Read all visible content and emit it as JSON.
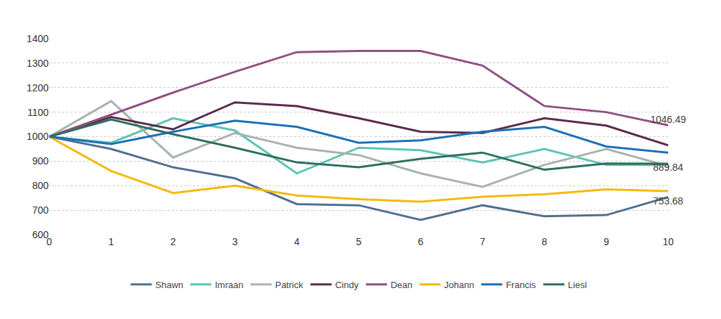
{
  "chart_data": {
    "type": "line",
    "x": [
      0,
      1,
      2,
      3,
      4,
      5,
      6,
      7,
      8,
      9,
      10
    ],
    "xlim": [
      0,
      10
    ],
    "xticks": [
      0,
      1,
      2,
      3,
      4,
      5,
      6,
      7,
      8,
      9,
      10
    ],
    "ylim": [
      600,
      1400
    ],
    "yticks": [
      600,
      700,
      800,
      900,
      1000,
      1100,
      1200,
      1300,
      1400
    ],
    "grid": true,
    "legend": "bottom",
    "series": [
      {
        "name": "Shawn",
        "color": "#4f6f91",
        "values": [
          1000,
          950,
          875,
          830,
          725,
          720,
          660,
          720,
          675,
          680,
          753.68
        ],
        "value_labels": [
          null,
          null,
          null,
          null,
          null,
          null,
          null,
          null,
          null,
          null,
          "753.68"
        ]
      },
      {
        "name": "Imraan",
        "color": "#5cc4b5",
        "values": [
          1000,
          975,
          1075,
          1025,
          850,
          955,
          945,
          895,
          950,
          885,
          885
        ]
      },
      {
        "name": "Patrick",
        "color": "#a8b3ae",
        "values": [
          1000,
          1145,
          915,
          1015,
          955,
          925,
          850,
          795,
          885,
          950,
          880
        ]
      },
      {
        "name": "Cindy",
        "color": "#5b2a4a",
        "values": [
          1000,
          1080,
          1030,
          1140,
          1125,
          1075,
          1020,
          1015,
          1075,
          1045,
          965
        ]
      },
      {
        "name": "Dean",
        "color": "#8f4f80",
        "values": [
          1000,
          1090,
          1180,
          1265,
          1345,
          1350,
          1350,
          1290,
          1125,
          1100,
          1046.49
        ],
        "value_labels": [
          null,
          null,
          null,
          null,
          null,
          null,
          null,
          null,
          null,
          null,
          "1046.49"
        ]
      },
      {
        "name": "Johann",
        "color": "#f5b90a",
        "values": [
          1000,
          860,
          770,
          800,
          760,
          745,
          735,
          755,
          765,
          785,
          778
        ]
      },
      {
        "name": "Francis",
        "color": "#1b70b8",
        "values": [
          1000,
          970,
          1020,
          1065,
          1040,
          975,
          985,
          1020,
          1040,
          960,
          935
        ]
      },
      {
        "name": "Liesl",
        "color": "#2e6e5d",
        "values": [
          1000,
          1070,
          1010,
          955,
          895,
          875,
          910,
          935,
          865,
          890,
          889.84
        ],
        "value_labels": [
          null,
          null,
          null,
          null,
          null,
          null,
          null,
          null,
          null,
          null,
          "889.84"
        ]
      }
    ]
  }
}
